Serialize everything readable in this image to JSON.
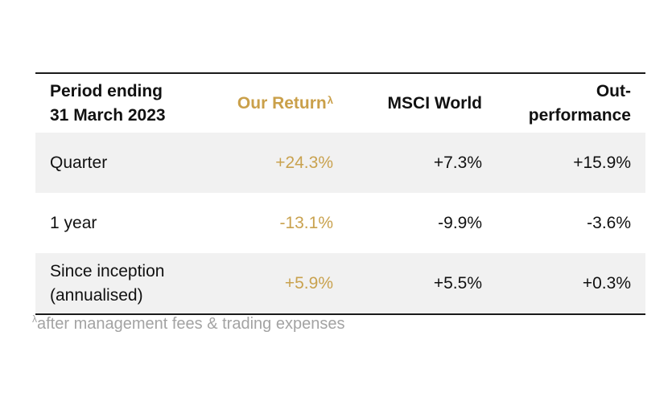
{
  "table": {
    "header": {
      "period_line1": "Period ending",
      "period_line2": "31 March 2023",
      "our_return": "Our Return",
      "our_return_marker": "λ",
      "msci": "MSCI World",
      "outperf_line1": "Out-",
      "outperf_line2": "performance"
    },
    "rows": [
      {
        "label_line1": "Quarter",
        "label_line2": "",
        "our_return": "+24.3%",
        "msci": "+7.3%",
        "outperformance": "+15.9%"
      },
      {
        "label_line1": "1 year",
        "label_line2": "",
        "our_return": "-13.1%",
        "msci": "-9.9%",
        "outperformance": "-3.6%"
      },
      {
        "label_line1": "Since inception",
        "label_line2": "(annualised)",
        "our_return": "+5.9%",
        "msci": "+5.5%",
        "outperformance": "+0.3%"
      }
    ]
  },
  "footnote": {
    "marker": "λ",
    "text": "after management fees & trading expenses"
  },
  "colors": {
    "accent_gold": "#c9a24f",
    "shade": "#f1f1f1",
    "footnote_grey": "#a3a3a3"
  }
}
